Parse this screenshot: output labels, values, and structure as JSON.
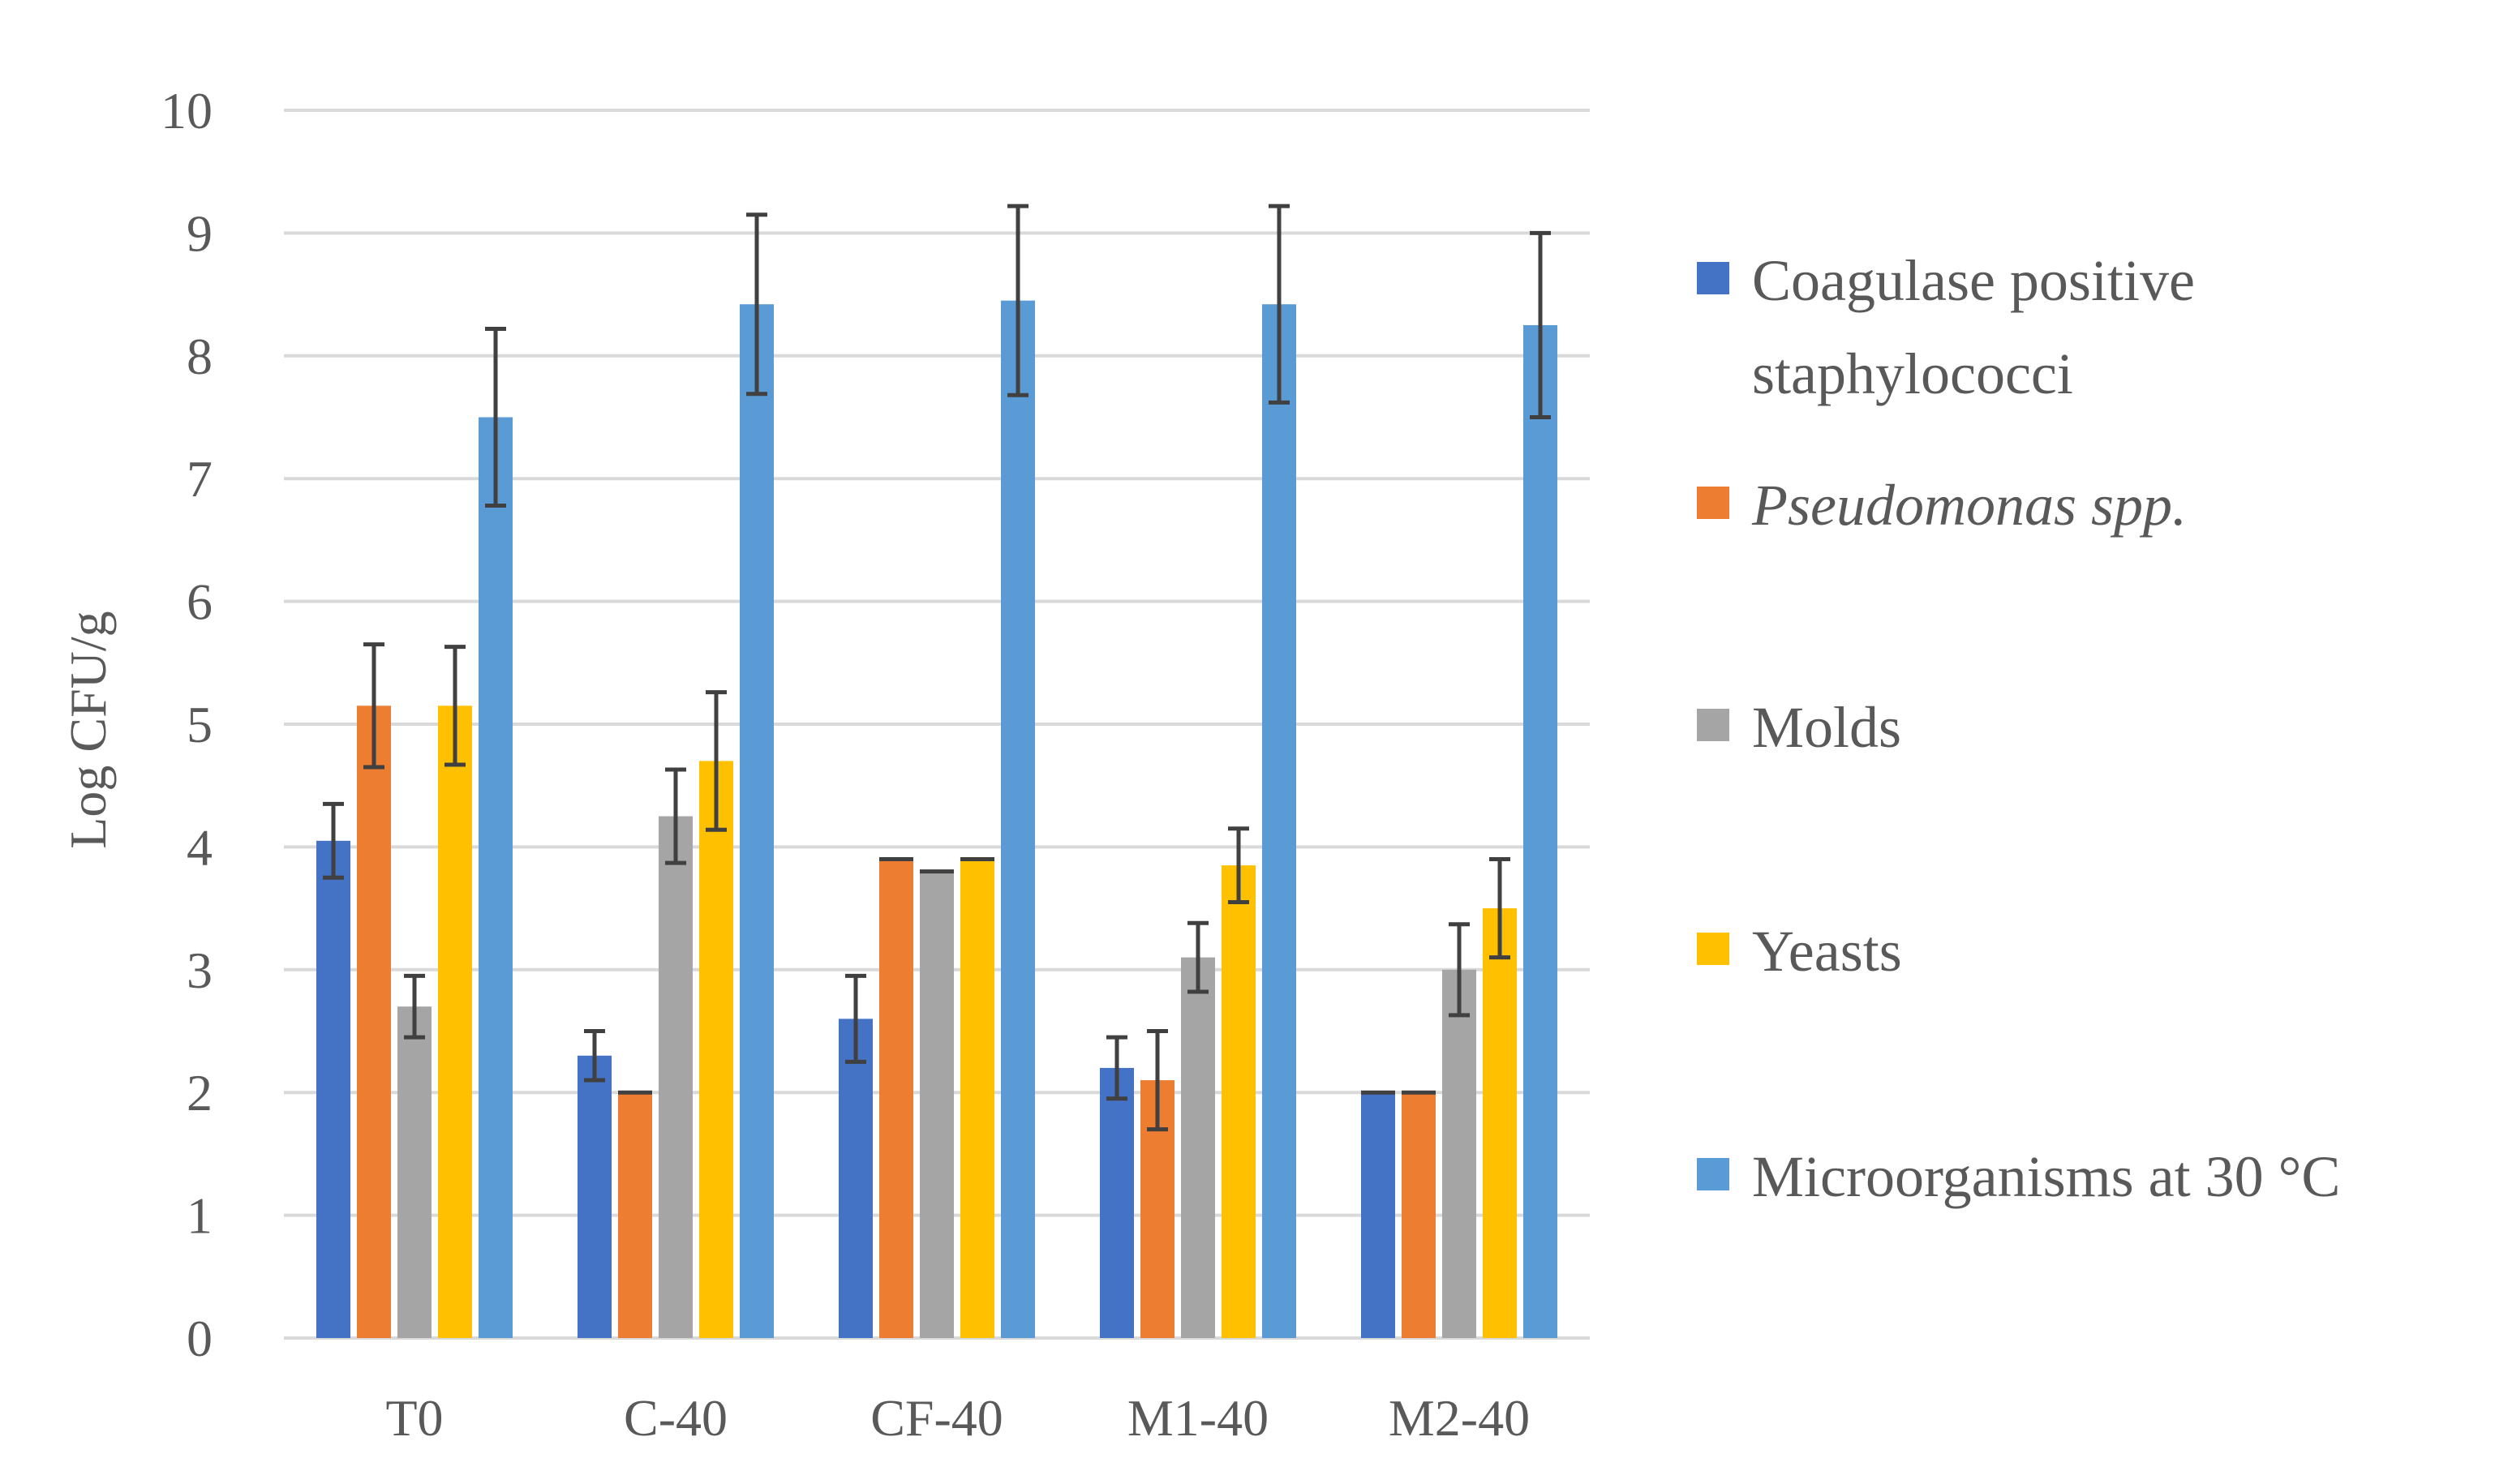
{
  "chart_data": {
    "type": "bar",
    "ylabel": "Log CFU/g",
    "xlabel": "",
    "ylim": [
      0,
      10
    ],
    "yticks": [
      "0",
      "1",
      "2",
      "3",
      "4",
      "5",
      "6",
      "7",
      "8",
      "9",
      "10"
    ],
    "grid": true,
    "legend_position": "right",
    "categories": [
      "T0",
      "C-40",
      "CF-40",
      "M1-40",
      "M2-40"
    ],
    "series": [
      {
        "name_lines": [
          "Coagulase positive",
          "staphylococci"
        ],
        "italic": false,
        "color": "#4472C4",
        "values": [
          4.05,
          2.3,
          2.6,
          2.2,
          2.0
        ],
        "errors": [
          0.3,
          0.2,
          0.35,
          0.25,
          0.0
        ]
      },
      {
        "name_lines": [
          "Pseudomonas spp."
        ],
        "italic": true,
        "color": "#ED7D31",
        "values": [
          5.15,
          2.0,
          3.9,
          2.1,
          2.0
        ],
        "errors": [
          0.5,
          0.0,
          0.0,
          0.4,
          0.0
        ]
      },
      {
        "name_lines": [
          "Molds"
        ],
        "italic": false,
        "color": "#A5A5A5",
        "values": [
          2.7,
          4.25,
          3.8,
          3.1,
          3.0
        ],
        "errors": [
          0.25,
          0.38,
          0.0,
          0.28,
          0.37
        ]
      },
      {
        "name_lines": [
          "Yeasts"
        ],
        "italic": false,
        "color": "#FFC000",
        "values": [
          5.15,
          4.7,
          3.9,
          3.85,
          3.5
        ],
        "errors": [
          0.48,
          0.56,
          0.0,
          0.3,
          0.4
        ]
      },
      {
        "name_lines": [
          "Microorganisms at 30 °C"
        ],
        "italic": false,
        "color": "#5B9BD5",
        "values": [
          7.5,
          8.42,
          8.45,
          8.42,
          8.25
        ],
        "errors": [
          0.72,
          0.73,
          0.77,
          0.8,
          0.75
        ]
      }
    ]
  }
}
